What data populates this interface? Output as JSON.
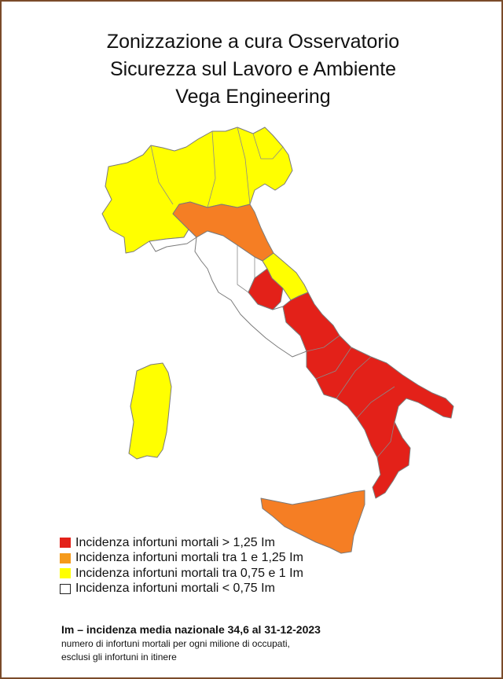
{
  "title": {
    "line1": "Zonizzazione a cura Osservatorio",
    "line2": "Sicurezza sul Lavoro e Ambiente",
    "line3": "Vega Engineering"
  },
  "colors": {
    "red": "#e32119",
    "orange": "#f57e24",
    "yellow": "#ffff00",
    "white": "#ffffff",
    "border": "#7a4b2a"
  },
  "legend": [
    {
      "label": "Incidenza infortuni mortali > 1,25 Im",
      "color": "#e32119"
    },
    {
      "label": "Incidenza infortuni mortali tra 1 e 1,25 Im",
      "color": "#f59a1b"
    },
    {
      "label": "Incidenza infortuni mortali tra 0,75 e 1 Im",
      "color": "#ffff00"
    },
    {
      "label": "Incidenza infortuni mortali < 0,75 Im",
      "color": "#ffffff"
    }
  ],
  "note": {
    "headline": "Im – incidenza media nazionale 34,6 al 31-12-2023",
    "line1": "numero di infortuni mortali per ogni milione di occupati,",
    "line2": "esclusi gli infortuni in itinere"
  }
}
